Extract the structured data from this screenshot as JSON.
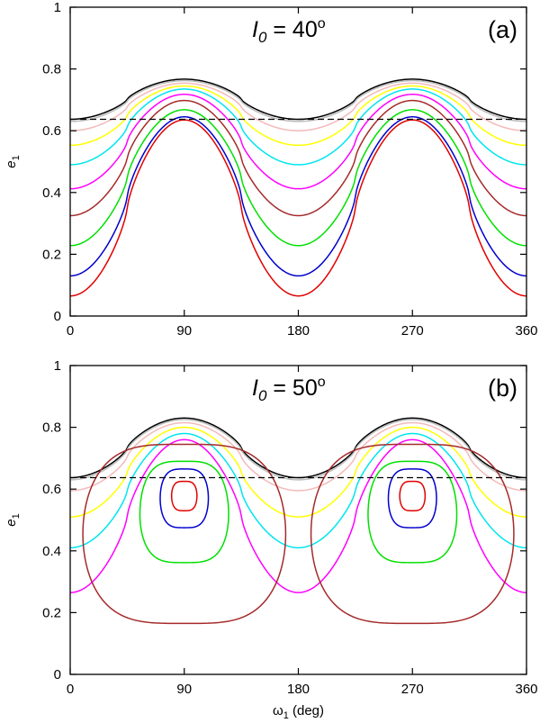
{
  "chart_data": [
    {
      "type": "line",
      "panel_label": "(a)",
      "title_symbol": "I",
      "title_sub": "0",
      "title_rest": " = 40",
      "title_degree": "o",
      "xlabel_symbol": "",
      "xlabel_sub": "",
      "xlabel_rest": "",
      "ylabel_symbol": "e",
      "ylabel_sub": "1",
      "xlim": [
        0,
        360
      ],
      "ylim": [
        0,
        1
      ],
      "xticks": [
        "0",
        "90",
        "180",
        "270",
        "360"
      ],
      "yticks": [
        "0",
        "0.2",
        "0.4",
        "0.6",
        "0.8",
        "1"
      ],
      "dashed_line": {
        "y": 0.637,
        "color": "#000000"
      },
      "series": [
        {
          "name": "black",
          "color": "#000000",
          "closed": false,
          "e_min": 0.637,
          "e_max": 0.767
        },
        {
          "name": "gray",
          "color": "#bdbdbd",
          "closed": false,
          "e_min": 0.63,
          "e_max": 0.762
        },
        {
          "name": "pink",
          "color": "#f4b9b9",
          "closed": false,
          "e_min": 0.6,
          "e_max": 0.754
        },
        {
          "name": "yellow",
          "color": "#ffff00",
          "closed": false,
          "e_min": 0.553,
          "e_max": 0.745
        },
        {
          "name": "cyan",
          "color": "#00e5ee",
          "closed": false,
          "e_min": 0.49,
          "e_max": 0.735
        },
        {
          "name": "magenta",
          "color": "#ff00ff",
          "closed": false,
          "e_min": 0.412,
          "e_max": 0.718
        },
        {
          "name": "brown",
          "color": "#a52a2a",
          "closed": false,
          "e_min": 0.325,
          "e_max": 0.698
        },
        {
          "name": "green",
          "color": "#00e000",
          "closed": false,
          "e_min": 0.228,
          "e_max": 0.668
        },
        {
          "name": "blue",
          "color": "#0000cd",
          "closed": false,
          "e_min": 0.13,
          "e_max": 0.645
        },
        {
          "name": "red",
          "color": "#e00000",
          "closed": false,
          "e_min": 0.065,
          "e_max": 0.635
        }
      ]
    },
    {
      "type": "line",
      "panel_label": "(b)",
      "title_symbol": "I",
      "title_sub": "0",
      "title_rest": " = 50",
      "title_degree": "o",
      "xlabel_symbol": "ω",
      "xlabel_sub": "1",
      "xlabel_rest": " (deg)",
      "ylabel_symbol": "e",
      "ylabel_sub": "1",
      "xlim": [
        0,
        360
      ],
      "ylim": [
        0,
        1
      ],
      "xticks": [
        "0",
        "90",
        "180",
        "270",
        "360"
      ],
      "yticks": [
        "0",
        "0.2",
        "0.4",
        "0.6",
        "0.8",
        "1"
      ],
      "dashed_line": {
        "y": 0.637,
        "color": "#000000"
      },
      "series": [
        {
          "name": "black",
          "color": "#000000",
          "closed": false,
          "e_min": 0.637,
          "e_max": 0.83
        },
        {
          "name": "gray",
          "color": "#bdbdbd",
          "closed": false,
          "e_min": 0.63,
          "e_max": 0.825
        },
        {
          "name": "pink",
          "color": "#f4b9b9",
          "closed": false,
          "e_min": 0.595,
          "e_max": 0.815
        },
        {
          "name": "yellow",
          "color": "#ffff00",
          "closed": false,
          "e_min": 0.51,
          "e_max": 0.8
        },
        {
          "name": "cyan",
          "color": "#00e5ee",
          "closed": false,
          "e_min": 0.41,
          "e_max": 0.78
        },
        {
          "name": "magenta",
          "color": "#ff00ff",
          "closed": false,
          "e_min": 0.265,
          "e_max": 0.76
        },
        {
          "name": "brown",
          "color": "#a52a2a",
          "closed": true,
          "center_x": 90,
          "center_e": 0.455,
          "half_width_deg": 80,
          "e_min": 0.165,
          "e_max": 0.745
        },
        {
          "name": "green",
          "color": "#00e000",
          "closed": true,
          "center_x": 90,
          "center_e": 0.518,
          "half_width_deg": 35,
          "e_min": 0.362,
          "e_max": 0.69
        },
        {
          "name": "blue",
          "color": "#0000cd",
          "closed": true,
          "center_x": 90,
          "center_e": 0.57,
          "half_width_deg": 19,
          "e_min": 0.475,
          "e_max": 0.665
        },
        {
          "name": "red",
          "color": "#e00000",
          "closed": true,
          "center_x": 90,
          "center_e": 0.578,
          "half_width_deg": 10,
          "e_min": 0.53,
          "e_max": 0.625
        }
      ]
    }
  ]
}
